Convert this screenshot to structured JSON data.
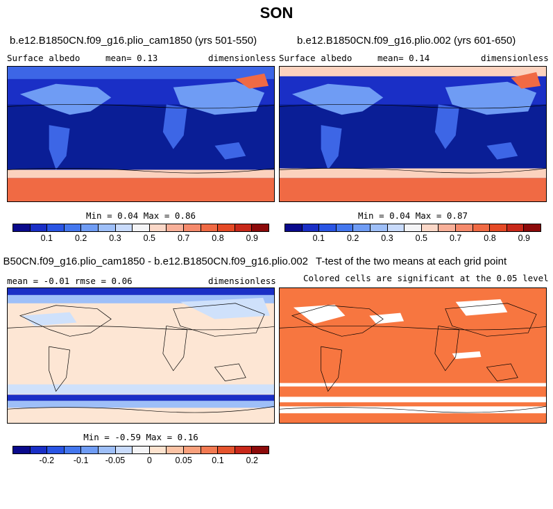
{
  "title": "SON",
  "panels": [
    {
      "title": "b.e12.B1850CN.f09_g16.plio_cam1850 (yrs 501-550)",
      "variable": "Surface albedo",
      "stat": "mean=    0.13",
      "units": "dimensionless",
      "minmax": "Min =   0.04 Max =   0.86"
    },
    {
      "title": "b.e12.B1850CN.f09_g16.plio.002 (yrs 601-650)",
      "variable": "Surface albedo",
      "stat": "mean=    0.14",
      "units": "dimensionless",
      "minmax": "Min =   0.04 Max =   0.87"
    },
    {
      "title": "B50CN.f09_g16.plio_cam1850 - b.e12.B1850CN.f09_g16.plio.002",
      "stat": "mean =  -0.01    rmse =   0.06",
      "units": "dimensionless",
      "minmax": "Min =  -0.59 Max =   0.16"
    },
    {
      "title": "T-test of the two means at each grid point",
      "subtitle": "Colored cells are significant at the 0.05 level"
    }
  ],
  "colorbars": {
    "albedo": {
      "colors": [
        "#0a0a8c",
        "#1a2fc6",
        "#2a55e4",
        "#4477ee",
        "#6f9cf4",
        "#9ebff8",
        "#c9dbfb",
        "#f4f4f6",
        "#fbd8c8",
        "#f8b099",
        "#f58a6c",
        "#f06a44",
        "#e54a26",
        "#c8281a",
        "#8c0a0a"
      ],
      "labels": [
        "0.1",
        "0.2",
        "0.3",
        "0.5",
        "0.7",
        "0.8",
        "0.9"
      ]
    },
    "diff": {
      "colors": [
        "#0a0a8c",
        "#1a2fc6",
        "#2a55e4",
        "#4477ee",
        "#6f9cf4",
        "#9ebff8",
        "#c9dbfb",
        "#f4f4f6",
        "#fde3cf",
        "#fbc3a5",
        "#f8a07c",
        "#f27a52",
        "#e5542e",
        "#c8281a",
        "#8c0a0a"
      ],
      "labels": [
        "-0.2",
        "-0.1",
        "-0.05",
        "0",
        "0.05",
        "0.1",
        "0.2"
      ]
    }
  },
  "map_colors": {
    "ocean_albedo": "#0a1e96",
    "land_albedo": "#3d66e6",
    "ice_high": "#f06a44",
    "ice_mid": "#fbd2be",
    "diff_neutral": "#fde6d4",
    "diff_neg": "#cfe1fb",
    "diff_strongneg": "#1a2fc6",
    "ttest_sig": "#f77640",
    "ttest_nonsig": "#ffffff"
  }
}
